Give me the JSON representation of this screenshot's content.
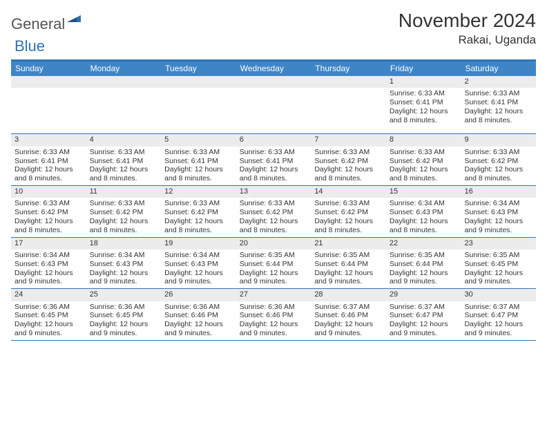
{
  "logo": {
    "text1": "General",
    "text2": "Blue"
  },
  "title": {
    "month": "November 2024",
    "location": "Rakai, Uganda"
  },
  "colors": {
    "header_bg": "#3e85c6",
    "header_border": "#2f73b6",
    "daynum_bg": "#ececec",
    "text": "#333333"
  },
  "weekdays": [
    "Sunday",
    "Monday",
    "Tuesday",
    "Wednesday",
    "Thursday",
    "Friday",
    "Saturday"
  ],
  "weeks": [
    [
      null,
      null,
      null,
      null,
      null,
      {
        "n": "1",
        "sunrise": "6:33 AM",
        "sunset": "6:41 PM",
        "daylight": "12 hours and 8 minutes."
      },
      {
        "n": "2",
        "sunrise": "6:33 AM",
        "sunset": "6:41 PM",
        "daylight": "12 hours and 8 minutes."
      }
    ],
    [
      {
        "n": "3",
        "sunrise": "6:33 AM",
        "sunset": "6:41 PM",
        "daylight": "12 hours and 8 minutes."
      },
      {
        "n": "4",
        "sunrise": "6:33 AM",
        "sunset": "6:41 PM",
        "daylight": "12 hours and 8 minutes."
      },
      {
        "n": "5",
        "sunrise": "6:33 AM",
        "sunset": "6:41 PM",
        "daylight": "12 hours and 8 minutes."
      },
      {
        "n": "6",
        "sunrise": "6:33 AM",
        "sunset": "6:41 PM",
        "daylight": "12 hours and 8 minutes."
      },
      {
        "n": "7",
        "sunrise": "6:33 AM",
        "sunset": "6:42 PM",
        "daylight": "12 hours and 8 minutes."
      },
      {
        "n": "8",
        "sunrise": "6:33 AM",
        "sunset": "6:42 PM",
        "daylight": "12 hours and 8 minutes."
      },
      {
        "n": "9",
        "sunrise": "6:33 AM",
        "sunset": "6:42 PM",
        "daylight": "12 hours and 8 minutes."
      }
    ],
    [
      {
        "n": "10",
        "sunrise": "6:33 AM",
        "sunset": "6:42 PM",
        "daylight": "12 hours and 8 minutes."
      },
      {
        "n": "11",
        "sunrise": "6:33 AM",
        "sunset": "6:42 PM",
        "daylight": "12 hours and 8 minutes."
      },
      {
        "n": "12",
        "sunrise": "6:33 AM",
        "sunset": "6:42 PM",
        "daylight": "12 hours and 8 minutes."
      },
      {
        "n": "13",
        "sunrise": "6:33 AM",
        "sunset": "6:42 PM",
        "daylight": "12 hours and 8 minutes."
      },
      {
        "n": "14",
        "sunrise": "6:33 AM",
        "sunset": "6:42 PM",
        "daylight": "12 hours and 8 minutes."
      },
      {
        "n": "15",
        "sunrise": "6:34 AM",
        "sunset": "6:43 PM",
        "daylight": "12 hours and 8 minutes."
      },
      {
        "n": "16",
        "sunrise": "6:34 AM",
        "sunset": "6:43 PM",
        "daylight": "12 hours and 9 minutes."
      }
    ],
    [
      {
        "n": "17",
        "sunrise": "6:34 AM",
        "sunset": "6:43 PM",
        "daylight": "12 hours and 9 minutes."
      },
      {
        "n": "18",
        "sunrise": "6:34 AM",
        "sunset": "6:43 PM",
        "daylight": "12 hours and 9 minutes."
      },
      {
        "n": "19",
        "sunrise": "6:34 AM",
        "sunset": "6:43 PM",
        "daylight": "12 hours and 9 minutes."
      },
      {
        "n": "20",
        "sunrise": "6:35 AM",
        "sunset": "6:44 PM",
        "daylight": "12 hours and 9 minutes."
      },
      {
        "n": "21",
        "sunrise": "6:35 AM",
        "sunset": "6:44 PM",
        "daylight": "12 hours and 9 minutes."
      },
      {
        "n": "22",
        "sunrise": "6:35 AM",
        "sunset": "6:44 PM",
        "daylight": "12 hours and 9 minutes."
      },
      {
        "n": "23",
        "sunrise": "6:35 AM",
        "sunset": "6:45 PM",
        "daylight": "12 hours and 9 minutes."
      }
    ],
    [
      {
        "n": "24",
        "sunrise": "6:36 AM",
        "sunset": "6:45 PM",
        "daylight": "12 hours and 9 minutes."
      },
      {
        "n": "25",
        "sunrise": "6:36 AM",
        "sunset": "6:45 PM",
        "daylight": "12 hours and 9 minutes."
      },
      {
        "n": "26",
        "sunrise": "6:36 AM",
        "sunset": "6:46 PM",
        "daylight": "12 hours and 9 minutes."
      },
      {
        "n": "27",
        "sunrise": "6:36 AM",
        "sunset": "6:46 PM",
        "daylight": "12 hours and 9 minutes."
      },
      {
        "n": "28",
        "sunrise": "6:37 AM",
        "sunset": "6:46 PM",
        "daylight": "12 hours and 9 minutes."
      },
      {
        "n": "29",
        "sunrise": "6:37 AM",
        "sunset": "6:47 PM",
        "daylight": "12 hours and 9 minutes."
      },
      {
        "n": "30",
        "sunrise": "6:37 AM",
        "sunset": "6:47 PM",
        "daylight": "12 hours and 9 minutes."
      }
    ]
  ],
  "labels": {
    "sunrise_prefix": "Sunrise: ",
    "sunset_prefix": "Sunset: ",
    "daylight_prefix": "Daylight: "
  }
}
